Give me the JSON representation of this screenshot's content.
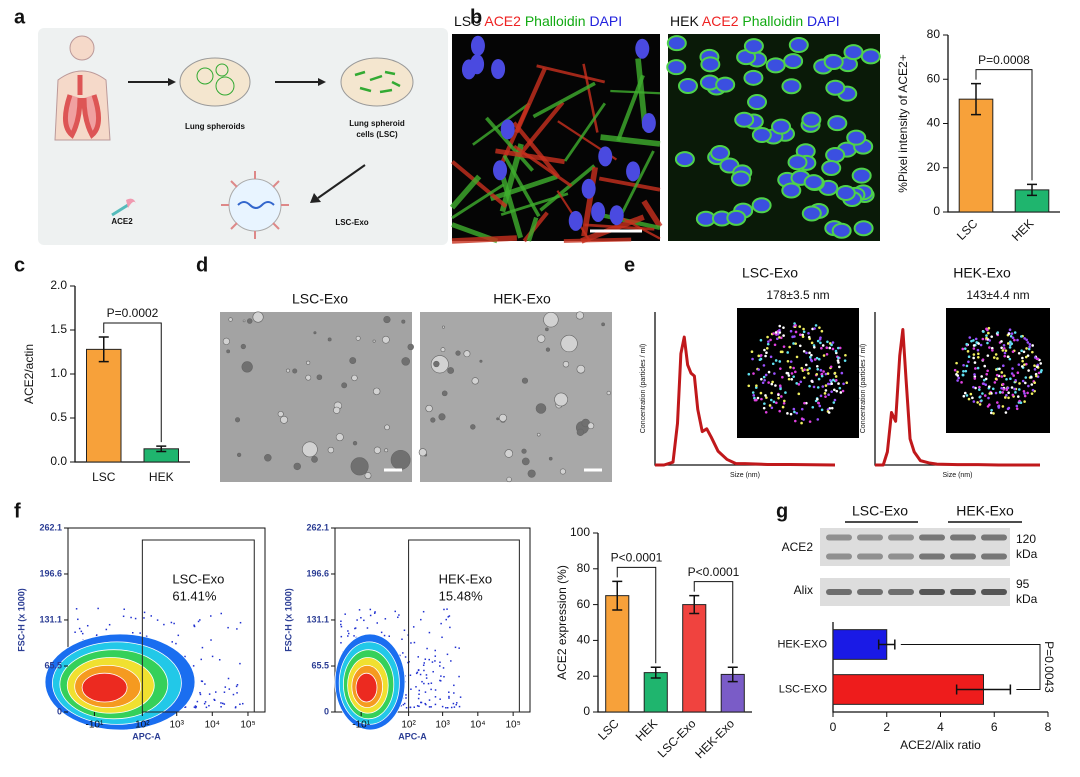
{
  "panels": [
    "a",
    "b",
    "c",
    "d",
    "e",
    "f",
    "g"
  ],
  "diagram": {
    "spheroids": "Lung spheroids",
    "cells": [
      "Lung spheroid",
      "cells (LSC)"
    ],
    "receptor": "ACE2",
    "exosome": "LSC-Exo"
  },
  "staining": [
    {
      "cell": "LSC",
      "channels": [
        "ACE2",
        "Phalloidin",
        "DAPI"
      ]
    },
    {
      "cell": "HEK",
      "channels": [
        "ACE2",
        "Phalloidin",
        "DAPI"
      ]
    }
  ],
  "tem": [
    "LSC-Exo",
    "HEK-Exo"
  ],
  "nta": [
    "LSC-Exo",
    "HEK-Exo"
  ],
  "blot": {
    "groups": [
      "LSC-Exo",
      "HEK-Exo"
    ],
    "rows": [
      {
        "name": "ACE2",
        "size": [
          "120",
          "kDa"
        ]
      },
      {
        "name": "Alix",
        "size": [
          "95",
          "kDa"
        ]
      }
    ]
  },
  "chart_data": [
    {
      "type": "bar",
      "ylabel": "%Pixel intensity of ACE2+",
      "categories": [
        "LSC",
        "HEK"
      ],
      "values": [
        51,
        10
      ],
      "errors": [
        7,
        2.5
      ],
      "colors": [
        "#f7a13a",
        "#1fb56e"
      ],
      "ylim": [
        0,
        80
      ],
      "yticks": [
        0,
        20,
        40,
        60,
        80
      ],
      "annotations": [
        "P=0.0008"
      ],
      "label_rotation": 45
    },
    {
      "type": "bar",
      "ylabel": "ACE2/actin",
      "categories": [
        "LSC",
        "HEK"
      ],
      "values": [
        1.28,
        0.15
      ],
      "errors": [
        0.14,
        0.03
      ],
      "colors": [
        "#f7a13a",
        "#1fb56e"
      ],
      "ylim": [
        0,
        2
      ],
      "yticks": [
        {
          "value": 0,
          "label": "0.0"
        },
        0.5,
        {
          "value": 1,
          "label": "1.0"
        },
        1.5,
        {
          "value": 2,
          "label": "2.0"
        }
      ],
      "annotations": [
        "P=0.0002"
      ],
      "label_rotation": 0
    },
    {
      "type": "line",
      "annotation": "178±3.5 nm",
      "ylabel": "Concentration (particles / ml)",
      "xlabel": "Size (nm)",
      "color": "#c0181b",
      "xlim": [
        0,
        800
      ],
      "ylim": [
        0,
        5.5
      ],
      "x": [
        0,
        40,
        80,
        100,
        115,
        130,
        145,
        160,
        175,
        190,
        210,
        230,
        250,
        280,
        320,
        360,
        400,
        500,
        600,
        700,
        800
      ],
      "values": [
        0,
        0,
        0.1,
        1.5,
        4.0,
        4.6,
        3.6,
        3.3,
        3.2,
        2.0,
        1.2,
        1.3,
        1.0,
        0.5,
        0.2,
        0.05,
        0.05,
        0.02,
        0.02,
        0.01,
        0
      ]
    },
    {
      "type": "line",
      "annotation": "143±4.4 nm",
      "ylabel": "Concentration (particles / ml)",
      "xlabel": "Size (nm)",
      "color": "#c0181b",
      "xlim": [
        0,
        800
      ],
      "ylim": [
        0,
        3.5
      ],
      "x": [
        0,
        40,
        60,
        80,
        100,
        120,
        135,
        150,
        170,
        190,
        220,
        260,
        300,
        400,
        500,
        600,
        700,
        800
      ],
      "values": [
        0,
        0,
        0.3,
        1.2,
        1.0,
        2.5,
        3.1,
        2.0,
        0.6,
        0.3,
        0.1,
        0.05,
        0.02,
        0.01,
        0.01,
        0,
        0,
        0
      ]
    },
    {
      "type": "density",
      "gate_name": "LSC-Exo",
      "gate_percent": "61.41%",
      "ylabel": "FSC-H (x 1000)",
      "xlabel": "APC-A",
      "xscale": "symlog",
      "gate": {
        "x": [
          100,
          150000
        ],
        "y": [
          0,
          245
        ]
      },
      "xlim": [
        -100,
        300000
      ],
      "ylim": [
        0,
        262.1
      ],
      "yticks": [
        0,
        65.5,
        131.1,
        196.6,
        262.1
      ],
      "xticks": [
        {
          "value": -10,
          "label": "-10¹"
        },
        {
          "value": 100,
          "label": "10²"
        },
        {
          "value": 1000,
          "label": "10³"
        },
        {
          "value": 10000,
          "label": "10⁴"
        },
        {
          "value": 100000,
          "label": "10⁵"
        }
      ]
    },
    {
      "type": "density",
      "gate_name": "HEK-Exo",
      "gate_percent": "15.48%",
      "ylabel": "FSC-H (x 1000)",
      "xlabel": "APC-A",
      "xscale": "symlog",
      "gate": {
        "x": [
          100,
          150000
        ],
        "y": [
          0,
          245
        ]
      },
      "xlim": [
        -100,
        300000
      ],
      "ylim": [
        0,
        262.1
      ],
      "yticks": [
        0,
        65.5,
        131.1,
        196.6,
        262.1
      ],
      "xticks": [
        {
          "value": -10,
          "label": "-10¹"
        },
        {
          "value": 100,
          "label": "10²"
        },
        {
          "value": 1000,
          "label": "10³"
        },
        {
          "value": 10000,
          "label": "10⁴"
        },
        {
          "value": 100000,
          "label": "10⁵"
        }
      ]
    },
    {
      "type": "bar",
      "ylabel": "ACE2 expression (%)",
      "categories": [
        "LSC",
        "HEK",
        "LSC-Exo",
        "HEK-Exo"
      ],
      "values": [
        65,
        22,
        60,
        21
      ],
      "errors": [
        8,
        3,
        5,
        4
      ],
      "colors": [
        "#f7a13a",
        "#1fb56e",
        "#f0433f",
        "#7a5cc7"
      ],
      "ylim": [
        0,
        100
      ],
      "yticks": [
        0,
        20,
        40,
        60,
        80,
        100
      ],
      "annotations": [
        "P<0.0001",
        "P<0.0001"
      ],
      "label_rotation": 45
    },
    {
      "type": "hbar",
      "xlabel": "ACE2/Alix ratio",
      "categories": [
        "HEK-EXO",
        "LSC-EXO"
      ],
      "values": [
        2.0,
        5.6
      ],
      "errors": [
        0.3,
        1.0
      ],
      "colors": [
        "#1a1ae6",
        "#ee1c1c"
      ],
      "xlim": [
        0,
        8
      ],
      "xticks": [
        0,
        2,
        4,
        6,
        8
      ],
      "annotation": "P=0.0043"
    }
  ]
}
